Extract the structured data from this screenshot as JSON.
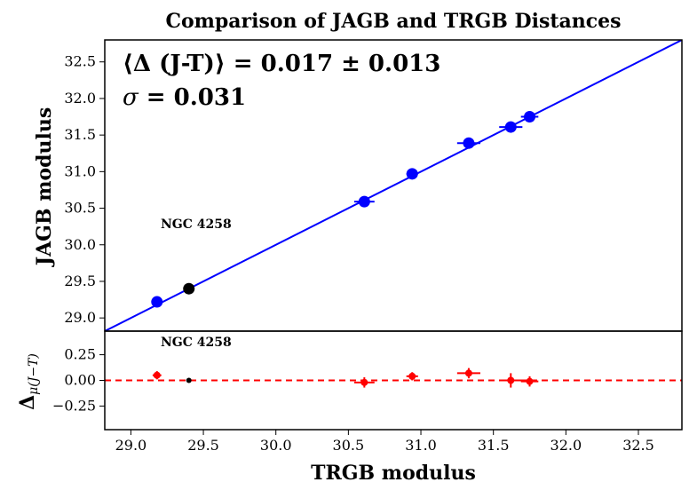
{
  "chart_data": {
    "type": "scatter",
    "title": "Comparison of JAGB and TRGB Distances",
    "xlabel": "TRGB modulus",
    "xlim": [
      28.82,
      32.8
    ],
    "xticks": [
      "29.0",
      "29.5",
      "30.0",
      "30.5",
      "31.0",
      "31.5",
      "32.0",
      "32.5"
    ],
    "top_panel": {
      "ylabel": "JAGB modulus",
      "ylim": [
        28.82,
        32.8
      ],
      "yticks": [
        "29.0",
        "29.5",
        "30.0",
        "30.5",
        "31.0",
        "31.5",
        "32.0",
        "32.5"
      ],
      "points": [
        {
          "x": 29.18,
          "y": 29.22,
          "xerr": 0.03,
          "color": "#0000ff"
        },
        {
          "x": 30.61,
          "y": 30.59,
          "xerr": 0.07,
          "color": "#0000ff"
        },
        {
          "x": 30.94,
          "y": 30.97,
          "xerr": 0.04,
          "color": "#0000ff"
        },
        {
          "x": 31.33,
          "y": 31.39,
          "xerr": 0.08,
          "color": "#0000ff"
        },
        {
          "x": 31.62,
          "y": 31.61,
          "xerr": 0.08,
          "color": "#0000ff"
        },
        {
          "x": 31.75,
          "y": 31.75,
          "xerr": 0.06,
          "color": "#0000ff"
        },
        {
          "x": 29.4,
          "y": 29.4,
          "xerr": 0.0,
          "color": "#000000"
        }
      ],
      "line": {
        "from": [
          28.82,
          28.82
        ],
        "to": [
          32.8,
          32.8
        ],
        "color": "#0000ff"
      },
      "stat_mean": {
        "prefix": "⟨Δ (J-T)⟩",
        "rest": " = 0.017 ± 0.013"
      },
      "stat_sigma": {
        "symbol": "σ",
        "rest": " = 0.031"
      },
      "annotation": "NGC 4258"
    },
    "bottom_panel": {
      "ylabel": "Δ",
      "ylabel_sub": "μ(J−T)",
      "ylim": [
        -0.48,
        0.48
      ],
      "yticks": [
        "0.25",
        "0.00",
        "−0.25"
      ],
      "ytick_values": [
        0.25,
        0.0,
        -0.25
      ],
      "points": [
        {
          "x": 29.18,
          "y": 0.05,
          "xerr": 0.03,
          "yerr": 0.04,
          "color": "#ff0000"
        },
        {
          "x": 30.61,
          "y": -0.02,
          "xerr": 0.07,
          "yerr": 0.05,
          "color": "#ff0000"
        },
        {
          "x": 30.94,
          "y": 0.04,
          "xerr": 0.04,
          "yerr": 0.04,
          "color": "#ff0000"
        },
        {
          "x": 31.33,
          "y": 0.07,
          "xerr": 0.08,
          "yerr": 0.05,
          "color": "#ff0000"
        },
        {
          "x": 31.62,
          "y": 0.0,
          "xerr": 0.08,
          "yerr": 0.07,
          "color": "#ff0000"
        },
        {
          "x": 31.75,
          "y": -0.01,
          "xerr": 0.06,
          "yerr": 0.05,
          "color": "#ff0000"
        },
        {
          "x": 29.4,
          "y": 0.0,
          "xerr": 0.0,
          "yerr": 0.0,
          "color": "#000000"
        }
      ],
      "zero_line_color": "#ff0000",
      "annotation": "NGC 4258"
    }
  }
}
